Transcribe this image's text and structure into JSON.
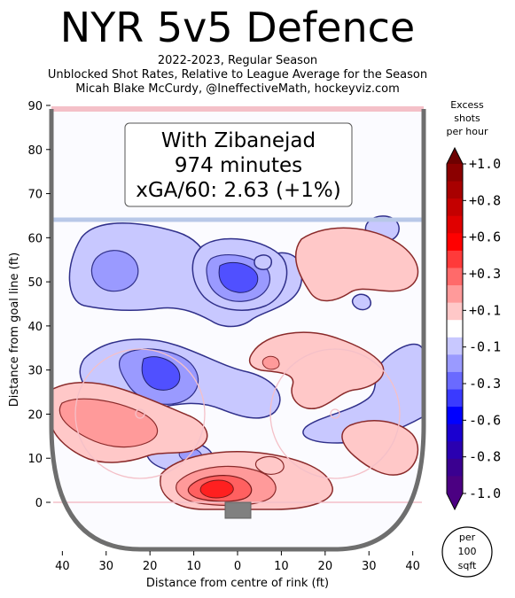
{
  "header": {
    "title": "NYR 5v5 Defence",
    "subtitle_lines": [
      "2022-2023, Regular Season",
      "Unblocked Shot Rates, Relative to League Average for the Season",
      "Micah Blake McCurdy, @IneffectiveMath, hockeyviz.com"
    ]
  },
  "annotation": {
    "lines": [
      "With Zibanejad",
      "974 minutes",
      "xGA/60: 2.63 (+1%)"
    ]
  },
  "chart_data": {
    "type": "heatmap",
    "xlabel": "Distance from centre of rink (ft)",
    "ylabel": "Distance from goal line (ft)",
    "x_ticks": [
      "40",
      "30",
      "20",
      "10",
      "0",
      "10",
      "20",
      "30",
      "40"
    ],
    "y_ticks": [
      0,
      10,
      20,
      30,
      40,
      50,
      60,
      70,
      80,
      90
    ],
    "xlim": [
      -42.5,
      42.5
    ],
    "ylim": [
      -11,
      90
    ],
    "colorbar": {
      "title_lines": [
        "Excess",
        "shots",
        "per hour"
      ],
      "tick_labels": [
        "+1.0",
        "+0.8",
        "+0.6",
        "+0.3",
        "+0.1",
        "-0.1",
        "-0.3",
        "-0.6",
        "-0.8",
        "-1.0"
      ],
      "range": [
        -1.0,
        1.0
      ]
    },
    "unit_badge_lines": [
      "per",
      "100",
      "sqft"
    ],
    "colors": {
      "positive_light": "#ffc8c8",
      "positive_mid": "#ff9a9a",
      "positive_strong": "#ff3030",
      "negative_light": "#c8c8ff",
      "negative_mid": "#9a9aff",
      "negative_strong": "#5050ff",
      "rink_outline": "#707070",
      "blue_line": "#b8c8e8",
      "red_line": "#f4c0c8"
    }
  }
}
